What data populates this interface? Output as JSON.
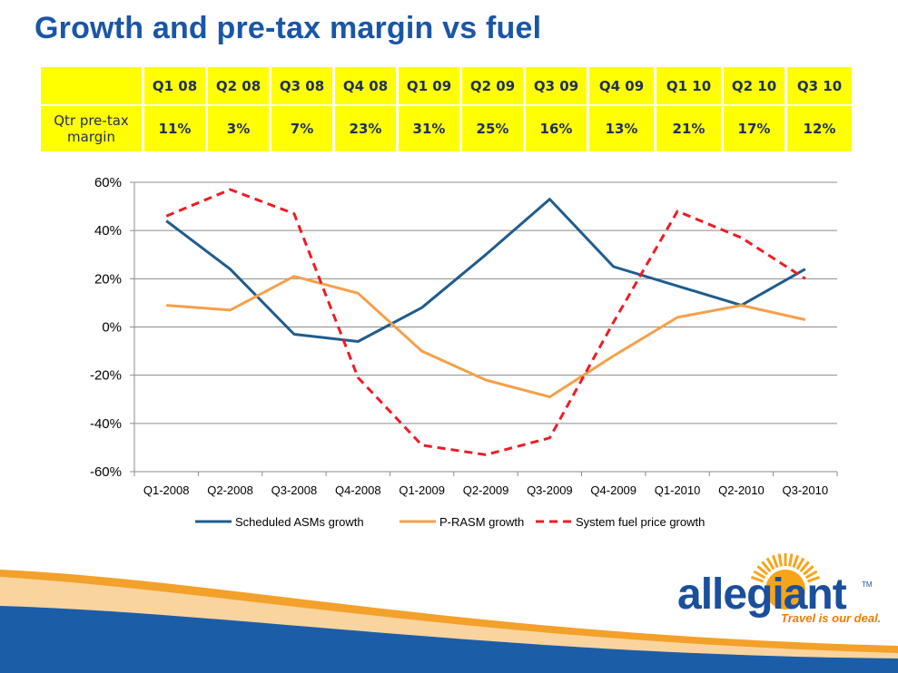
{
  "slide": {
    "title": "Growth and pre-tax margin vs fuel"
  },
  "margin_table": {
    "row_label": "Qtr pre-tax margin",
    "quarters": [
      "Q1 08",
      "Q2 08",
      "Q3 08",
      "Q4 08",
      "Q1 09",
      "Q2 09",
      "Q3 09",
      "Q4 09",
      "Q1 10",
      "Q2 10",
      "Q3 10"
    ],
    "margins": [
      "11%",
      "3%",
      "7%",
      "23%",
      "31%",
      "25%",
      "16%",
      "13%",
      "21%",
      "17%",
      "12%"
    ]
  },
  "chart_data": {
    "type": "line",
    "categories": [
      "Q1-2008",
      "Q2-2008",
      "Q3-2008",
      "Q4-2008",
      "Q1-2009",
      "Q2-2009",
      "Q3-2009",
      "Q4-2009",
      "Q1-2010",
      "Q2-2010",
      "Q3-2010"
    ],
    "ylim": [
      -60,
      60
    ],
    "yticks": [
      60,
      40,
      20,
      0,
      -20,
      -40,
      -60
    ],
    "ytick_labels": [
      "60%",
      "40%",
      "20%",
      "0%",
      "-20%",
      "-40%",
      "-60%"
    ],
    "grid": true,
    "legend_position": "bottom",
    "series": [
      {
        "name": "Scheduled ASMs growth",
        "color": "#1f5c8f",
        "dash": "solid",
        "values": [
          44,
          24,
          -3,
          -6,
          8,
          30,
          53,
          25,
          17,
          9,
          24
        ]
      },
      {
        "name": "P-RASM growth",
        "color": "#f5a04a",
        "dash": "solid",
        "values": [
          9,
          7,
          21,
          14,
          -10,
          -22,
          -29,
          -12,
          4,
          9,
          3
        ]
      },
      {
        "name": "System fuel price growth",
        "color": "#ee1c25",
        "dash": "dashed",
        "values": [
          46,
          57,
          47,
          -21,
          -49,
          -53,
          -46,
          2,
          48,
          37,
          20
        ]
      }
    ]
  },
  "logo": {
    "word": "allegiant",
    "tm": "TM",
    "tagline": "Travel is our deal."
  }
}
